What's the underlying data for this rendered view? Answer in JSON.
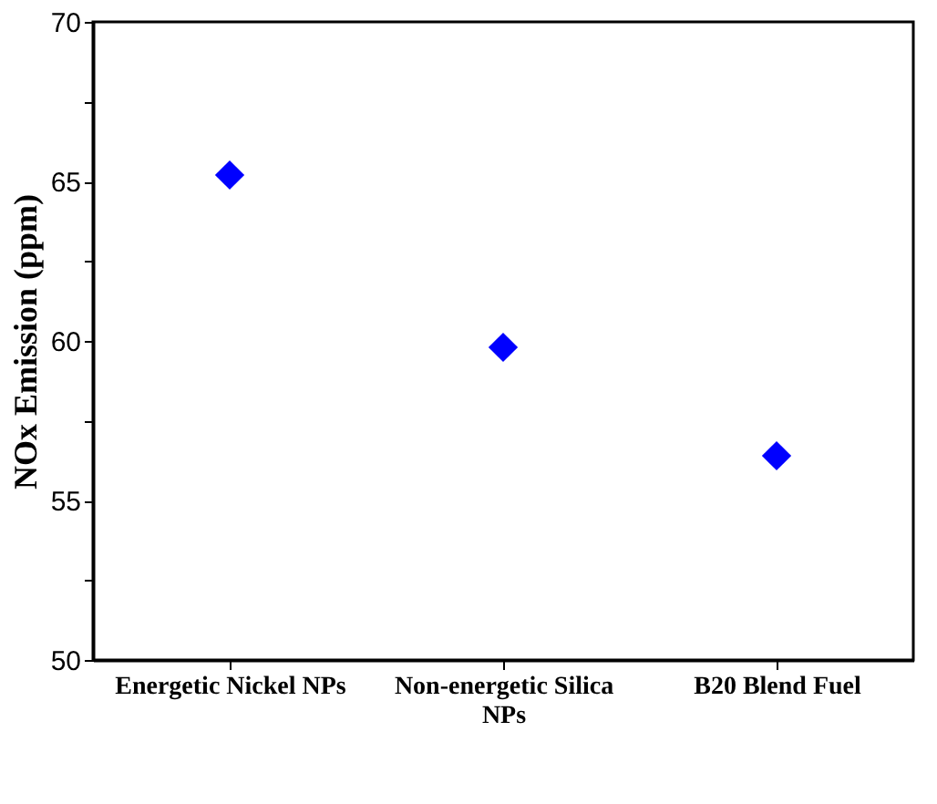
{
  "chart_data": {
    "type": "scatter",
    "ylabel": "NOx Emission (ppm)",
    "categories": [
      "Energetic Nickel NPs",
      "Non-energetic Silica NPs",
      "B20 Blend Fuel"
    ],
    "series": [
      {
        "color": "#0000ff",
        "values": [
          65.2,
          59.8,
          56.4
        ]
      }
    ],
    "marker": "diamond",
    "ylim": [
      50,
      70
    ],
    "yticks": [
      50,
      {
        "value": 52.5,
        "label": null
      },
      55,
      {
        "value": 57.5,
        "label": null
      },
      60,
      {
        "value": 62.5,
        "label": null
      },
      65,
      {
        "value": 67.5,
        "label": null
      },
      70
    ],
    "grid": false
  }
}
